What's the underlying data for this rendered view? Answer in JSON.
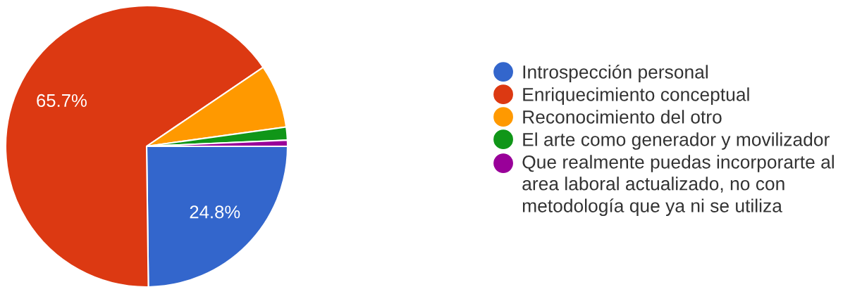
{
  "chart_data": {
    "type": "pie",
    "categories": [
      "Introspección personal",
      "Enriquecimiento conceptual",
      "Reconocimiento del otro",
      "El arte como generador y movilizador",
      "Que realmente puedas incorporarte al\narea laboral actualizado, no con\nmetodología que ya ni se utiliza"
    ],
    "values": [
      24.8,
      65.7,
      7.3,
      1.5,
      0.7
    ],
    "colors": [
      "#3366cc",
      "#dc3912",
      "#ff9900",
      "#109618",
      "#990099"
    ],
    "value_labels": [
      "24.8%",
      "65.7%",
      null,
      null,
      null
    ],
    "legend": "right"
  }
}
